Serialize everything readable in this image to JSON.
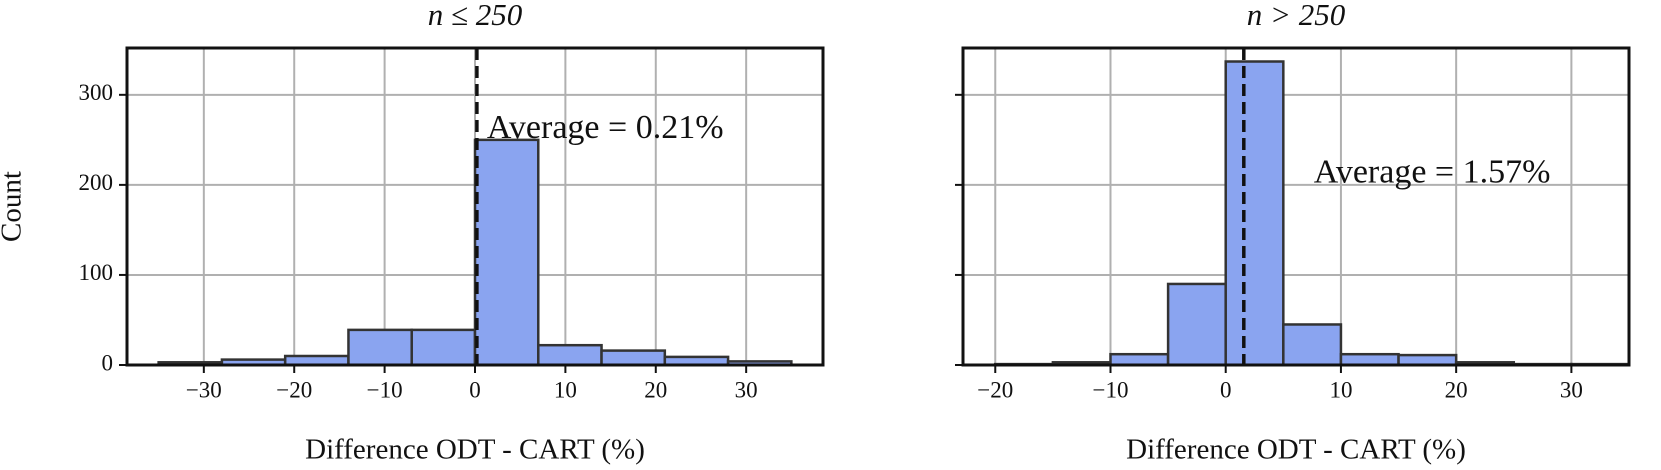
{
  "chart_data": [
    {
      "type": "histogram",
      "title": "n ≤ 250",
      "xlabel": "Difference ODT - CART (%)",
      "ylabel": "Count",
      "bins": [
        -35,
        -28,
        -21,
        -14,
        -7,
        0,
        7,
        14,
        21,
        28,
        35
      ],
      "values": [
        3,
        6,
        10,
        39,
        39,
        250,
        22,
        16,
        9,
        4
      ],
      "color": "#8aa4f0",
      "xlim": [
        -38.5,
        38.5
      ],
      "ylim": [
        0,
        352
      ],
      "xticks": [
        {
          "value": -30,
          "label": "−30"
        },
        {
          "value": -20,
          "label": "−20"
        },
        {
          "value": -10,
          "label": "−10"
        },
        0,
        10,
        20,
        30
      ],
      "yticks": [
        0,
        100,
        200,
        300
      ],
      "show_ytick_labels": true,
      "grid": true,
      "mean": 0.21,
      "annotation": "Average = 0.21%"
    },
    {
      "type": "histogram",
      "title": "n > 250",
      "xlabel": "Difference ODT - CART (%)",
      "bins": [
        -20,
        -15,
        -10,
        -5,
        0,
        5,
        10,
        15,
        20,
        25,
        30,
        35
      ],
      "values": [
        1,
        3,
        12,
        90,
        337,
        45,
        12,
        11,
        3,
        1,
        1
      ],
      "color": "#8aa4f0",
      "xlim": [
        -22.8,
        35
      ],
      "ylim": [
        0,
        352
      ],
      "xticks": [
        {
          "value": -20,
          "label": "−20"
        },
        {
          "value": -10,
          "label": "−10"
        },
        0,
        10,
        20,
        30
      ],
      "yticks": [
        0,
        100,
        200,
        300
      ],
      "show_ytick_labels": false,
      "grid": true,
      "mean": 1.57,
      "annotation": "Average = 1.57%"
    }
  ]
}
